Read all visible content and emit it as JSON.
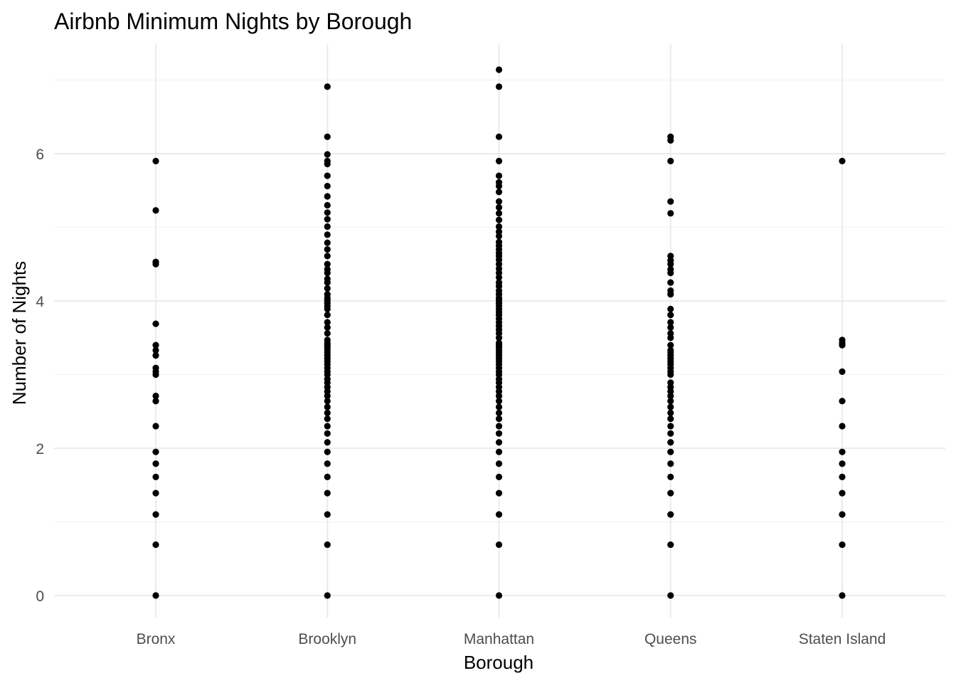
{
  "chart_data": {
    "type": "scatter",
    "title": "Airbnb Minimum Nights by Borough",
    "xlabel": "Borough",
    "ylabel": "Number of Nights",
    "categories": [
      "Bronx",
      "Brooklyn",
      "Manhattan",
      "Queens",
      "Staten Island"
    ],
    "ylim": [
      -0.3,
      7.4
    ],
    "yticks": [
      0,
      2,
      4,
      6
    ],
    "yticklabels": [
      "0",
      "2",
      "4",
      "6"
    ],
    "grid": true,
    "legend": "none",
    "series": [
      {
        "category": "Bronx",
        "values": [
          0,
          0.69,
          1.1,
          1.39,
          1.61,
          1.79,
          1.95,
          2.3,
          2.64,
          2.71,
          3.0,
          3.04,
          3.09,
          3.26,
          3.33,
          3.4,
          3.69,
          4.5,
          4.53,
          5.23,
          5.9
        ]
      },
      {
        "category": "Brooklyn",
        "values": [
          0,
          0.69,
          1.1,
          1.39,
          1.61,
          1.79,
          1.95,
          2.08,
          2.2,
          2.3,
          2.4,
          2.48,
          2.56,
          2.64,
          2.71,
          2.77,
          2.83,
          2.89,
          2.94,
          3.0,
          3.04,
          3.09,
          3.14,
          3.18,
          3.22,
          3.26,
          3.3,
          3.33,
          3.37,
          3.4,
          3.43,
          3.47,
          3.56,
          3.64,
          3.71,
          3.81,
          3.89,
          3.93,
          3.97,
          4.01,
          4.04,
          4.09,
          4.17,
          4.25,
          4.3,
          4.38,
          4.43,
          4.5,
          4.61,
          4.7,
          4.79,
          4.9,
          5.01,
          5.11,
          5.2,
          5.3,
          5.42,
          5.56,
          5.7,
          5.86,
          5.9,
          5.99,
          6.23,
          6.91
        ]
      },
      {
        "category": "Manhattan",
        "values": [
          0,
          0.69,
          1.1,
          1.39,
          1.61,
          1.79,
          1.95,
          2.08,
          2.2,
          2.3,
          2.4,
          2.48,
          2.56,
          2.64,
          2.71,
          2.77,
          2.83,
          2.89,
          2.94,
          3.0,
          3.04,
          3.09,
          3.14,
          3.18,
          3.22,
          3.26,
          3.3,
          3.33,
          3.37,
          3.4,
          3.43,
          3.5,
          3.56,
          3.61,
          3.66,
          3.71,
          3.76,
          3.81,
          3.85,
          3.89,
          3.93,
          3.97,
          4.01,
          4.04,
          4.09,
          4.14,
          4.2,
          4.25,
          4.32,
          4.38,
          4.44,
          4.5,
          4.56,
          4.61,
          4.65,
          4.7,
          4.75,
          4.8,
          4.88,
          4.94,
          5.01,
          5.1,
          5.19,
          5.27,
          5.35,
          5.48,
          5.56,
          5.61,
          5.7,
          5.9,
          6.23,
          6.91,
          7.14
        ]
      },
      {
        "category": "Queens",
        "values": [
          0,
          0.69,
          1.1,
          1.39,
          1.61,
          1.79,
          1.95,
          2.08,
          2.2,
          2.3,
          2.4,
          2.48,
          2.56,
          2.64,
          2.71,
          2.77,
          2.83,
          2.89,
          3.0,
          3.04,
          3.09,
          3.14,
          3.18,
          3.22,
          3.26,
          3.3,
          3.33,
          3.4,
          3.5,
          3.56,
          3.64,
          3.71,
          3.81,
          3.89,
          4.09,
          4.14,
          4.25,
          4.38,
          4.43,
          4.5,
          4.55,
          4.61,
          5.19,
          5.35,
          5.9,
          6.18,
          6.23
        ]
      },
      {
        "category": "Staten Island",
        "values": [
          0,
          0.69,
          1.1,
          1.39,
          1.61,
          1.79,
          1.95,
          2.3,
          2.64,
          3.04,
          3.4,
          3.43,
          3.47,
          5.9
        ]
      }
    ]
  }
}
